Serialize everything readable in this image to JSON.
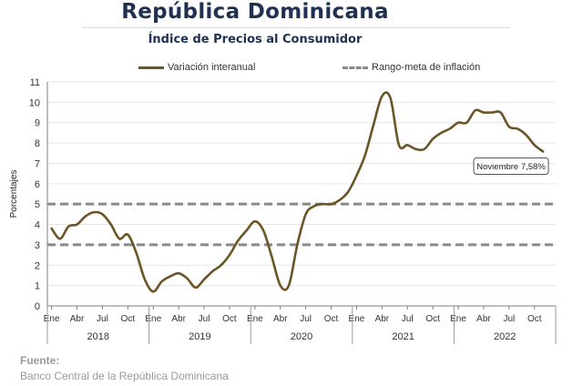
{
  "title": "República Dominicana",
  "subtitle": "Índice de Precios al Consumidor",
  "source_label": "Fuente:",
  "source_text": "Banco Central de la República Dominicana",
  "chart_data": {
    "type": "line",
    "title": "Índice de Precios al Consumidor",
    "ylabel": "Porcentajes",
    "xlabel": "",
    "ylim": [
      0,
      11
    ],
    "yticks": [
      0,
      1,
      2,
      3,
      4,
      5,
      6,
      7,
      8,
      9,
      10,
      11
    ],
    "grid": true,
    "legend_position": "top",
    "x_month_ticks": [
      "Ene",
      "Abr",
      "Jul",
      "Oct"
    ],
    "years": [
      "2018",
      "2019",
      "2020",
      "2021",
      "2022"
    ],
    "series": [
      {
        "name": "Variación interanual",
        "color": "#6b5426",
        "style": "solid",
        "x": [
          "2018-01",
          "2018-02",
          "2018-03",
          "2018-04",
          "2018-05",
          "2018-06",
          "2018-07",
          "2018-08",
          "2018-09",
          "2018-10",
          "2018-11",
          "2018-12",
          "2019-01",
          "2019-02",
          "2019-03",
          "2019-04",
          "2019-05",
          "2019-06",
          "2019-07",
          "2019-08",
          "2019-09",
          "2019-10",
          "2019-11",
          "2019-12",
          "2020-01",
          "2020-02",
          "2020-03",
          "2020-04",
          "2020-05",
          "2020-06",
          "2020-07",
          "2020-08",
          "2020-09",
          "2020-10",
          "2020-11",
          "2020-12",
          "2021-01",
          "2021-02",
          "2021-03",
          "2021-04",
          "2021-05",
          "2021-06",
          "2021-07",
          "2021-08",
          "2021-09",
          "2021-10",
          "2021-11",
          "2021-12",
          "2022-01",
          "2022-02",
          "2022-03",
          "2022-04",
          "2022-05",
          "2022-06",
          "2022-07",
          "2022-08",
          "2022-09",
          "2022-10",
          "2022-11"
        ],
        "values": [
          3.8,
          3.3,
          3.9,
          4.0,
          4.4,
          4.6,
          4.5,
          4.0,
          3.3,
          3.5,
          2.6,
          1.3,
          0.7,
          1.2,
          1.45,
          1.6,
          1.35,
          0.9,
          1.3,
          1.7,
          2.0,
          2.5,
          3.2,
          3.7,
          4.15,
          3.7,
          2.4,
          1.0,
          1.0,
          3.0,
          4.5,
          4.9,
          5.0,
          5.0,
          5.2,
          5.6,
          6.4,
          7.4,
          8.9,
          10.3,
          10.2,
          7.9,
          7.9,
          7.7,
          7.7,
          8.2,
          8.5,
          8.7,
          9.0,
          9.0,
          9.6,
          9.5,
          9.5,
          9.5,
          8.8,
          8.7,
          8.4,
          7.9,
          7.58
        ]
      },
      {
        "name": "Rango-meta de inflación",
        "color": "#8a8a8a",
        "style": "dashed",
        "upper": 5,
        "lower": 3
      }
    ],
    "annotations": [
      {
        "text": "Noviembre 7,58%",
        "x": "2022-11",
        "y": 7.58
      }
    ]
  }
}
